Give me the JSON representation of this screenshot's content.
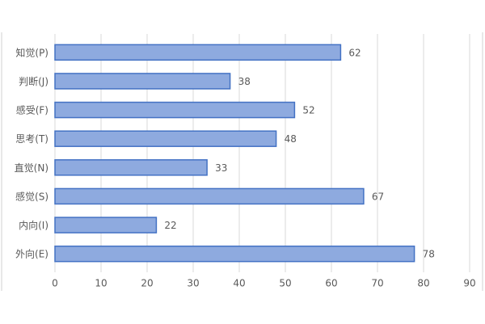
{
  "chart_data": {
    "type": "bar",
    "orientation": "horizontal",
    "categories": [
      "知觉(P)",
      "判断(J)",
      "感受(F)",
      "思考(T)",
      "直觉(N)",
      "感觉(S)",
      "内向(I)",
      "外向(E)"
    ],
    "values": [
      62,
      38,
      52,
      48,
      33,
      67,
      22,
      78
    ],
    "color": "#8eaadf",
    "edge_color": "#4472c4",
    "xlim": [
      0,
      90
    ],
    "xticks": [
      0,
      10,
      20,
      30,
      40,
      50,
      60,
      70,
      80,
      90
    ],
    "grid": true,
    "data_labels": true
  }
}
